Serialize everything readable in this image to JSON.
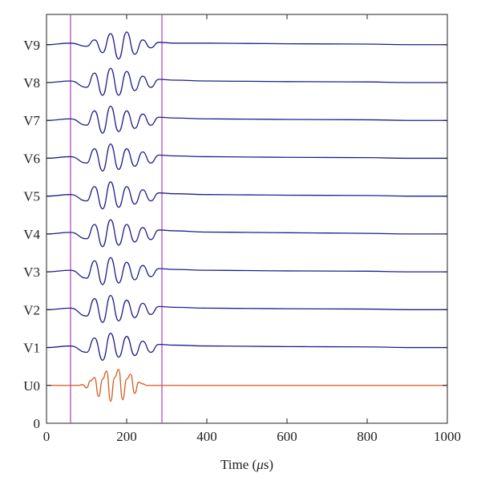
{
  "chart_data": {
    "type": "line",
    "title": "",
    "xlabel": {
      "prefix": "Time (",
      "unit_symbol": "μ",
      "unit_rest": "s)"
    },
    "ylabel": "",
    "xlim": [
      0,
      1000
    ],
    "ylim": [
      0,
      10.8
    ],
    "x_ticks": [
      0,
      200,
      400,
      600,
      800,
      1000
    ],
    "y_tick_labels": [
      "0",
      "U0",
      "V1",
      "V2",
      "V3",
      "V4",
      "V5",
      "V6",
      "V7",
      "V8",
      "V9"
    ],
    "grid": false,
    "legend": "none",
    "window_markers_x": [
      60,
      288
    ],
    "colors": {
      "excitation": "#d45a1e",
      "response": "#1f1f8c",
      "window_marker": "#b44fc0",
      "axis": "#222222"
    },
    "series": [
      {
        "name": "U0",
        "offset": 1,
        "color": "excitation",
        "x": [
          0,
          80,
          90,
          100,
          110,
          120,
          130,
          140,
          150,
          160,
          170,
          180,
          190,
          200,
          210,
          220,
          230,
          240,
          250,
          1000
        ],
        "values": [
          0,
          0,
          0.05,
          -0.15,
          0.3,
          0.5,
          -0.7,
          0.4,
          0.9,
          -1.0,
          0.5,
          1.0,
          -0.9,
          0.4,
          0.7,
          -0.5,
          0.2,
          0.1,
          0,
          0
        ]
      },
      {
        "name": "V1",
        "offset": 2,
        "color": "response",
        "x": [
          0,
          60,
          100,
          120,
          140,
          160,
          180,
          200,
          220,
          240,
          260,
          280,
          320,
          400,
          500,
          600,
          700,
          800,
          900,
          1000
        ],
        "values": [
          0,
          0.1,
          -0.3,
          0.6,
          -0.8,
          0.9,
          -0.6,
          0.7,
          -0.5,
          0.4,
          -0.3,
          0.2,
          0.15,
          0.1,
          0.08,
          0.06,
          0.05,
          0.04,
          0,
          0
        ]
      },
      {
        "name": "V2",
        "offset": 3,
        "color": "response",
        "x": [
          0,
          60,
          100,
          120,
          140,
          160,
          180,
          200,
          220,
          240,
          260,
          280,
          320,
          400,
          500,
          600,
          700,
          800,
          900,
          1000
        ],
        "values": [
          0,
          0.1,
          -0.4,
          0.7,
          -0.8,
          0.9,
          -0.7,
          0.6,
          -0.5,
          0.4,
          -0.3,
          0.2,
          0.15,
          0.1,
          0.08,
          0.06,
          0.05,
          0.04,
          0,
          0
        ]
      },
      {
        "name": "V3",
        "offset": 4,
        "color": "response",
        "x": [
          0,
          60,
          100,
          120,
          140,
          160,
          180,
          200,
          220,
          240,
          260,
          280,
          320,
          400,
          500,
          600,
          700,
          800,
          900,
          1000
        ],
        "values": [
          0,
          0.1,
          -0.4,
          0.7,
          -0.8,
          0.9,
          -0.7,
          0.6,
          -0.5,
          0.4,
          -0.3,
          0.2,
          0.15,
          0.1,
          0.08,
          0.06,
          0.05,
          0.04,
          0,
          0
        ]
      },
      {
        "name": "V4",
        "offset": 5,
        "color": "response",
        "x": [
          0,
          60,
          100,
          120,
          140,
          160,
          180,
          200,
          220,
          240,
          260,
          280,
          320,
          400,
          500,
          600,
          700,
          800,
          900,
          1000
        ],
        "values": [
          0,
          0.1,
          -0.3,
          0.6,
          -0.8,
          0.9,
          -0.7,
          0.6,
          -0.5,
          0.4,
          -0.35,
          0.25,
          0.2,
          0.12,
          0.1,
          0.08,
          0.06,
          0.04,
          0,
          0
        ]
      },
      {
        "name": "V5",
        "offset": 6,
        "color": "response",
        "x": [
          0,
          60,
          100,
          120,
          140,
          160,
          180,
          200,
          220,
          240,
          260,
          280,
          320,
          400,
          500,
          600,
          700,
          800,
          900,
          1000
        ],
        "values": [
          0,
          0.1,
          -0.3,
          0.6,
          -0.8,
          0.9,
          -0.7,
          0.6,
          -0.5,
          0.4,
          -0.3,
          0.2,
          0.15,
          0.1,
          0.08,
          0.06,
          0.05,
          0.04,
          0,
          0
        ]
      },
      {
        "name": "V6",
        "offset": 7,
        "color": "response",
        "x": [
          0,
          60,
          100,
          120,
          140,
          160,
          180,
          200,
          220,
          240,
          260,
          280,
          320,
          400,
          500,
          600,
          700,
          800,
          900,
          1000
        ],
        "values": [
          0,
          0.1,
          -0.3,
          0.6,
          -0.8,
          0.9,
          -0.7,
          0.6,
          -0.5,
          0.4,
          -0.3,
          0.2,
          0.15,
          0.1,
          0.08,
          0.06,
          0.05,
          0.04,
          0,
          0
        ]
      },
      {
        "name": "V7",
        "offset": 8,
        "color": "response",
        "x": [
          0,
          60,
          100,
          120,
          140,
          160,
          180,
          200,
          220,
          240,
          260,
          280,
          320,
          400,
          500,
          600,
          700,
          800,
          900,
          1000
        ],
        "values": [
          0,
          0.1,
          -0.3,
          0.6,
          -0.8,
          0.9,
          -0.7,
          0.6,
          -0.5,
          0.4,
          -0.3,
          0.2,
          0.15,
          0.1,
          0.08,
          0.06,
          0.05,
          0.04,
          0,
          0
        ]
      },
      {
        "name": "V8",
        "offset": 9,
        "color": "response",
        "x": [
          0,
          60,
          100,
          120,
          140,
          160,
          180,
          200,
          220,
          240,
          260,
          280,
          320,
          400,
          500,
          600,
          700,
          800,
          900,
          1000
        ],
        "values": [
          0,
          0.1,
          -0.3,
          0.6,
          -0.8,
          0.9,
          -0.8,
          0.7,
          -0.5,
          0.4,
          -0.3,
          0.2,
          0.15,
          0.1,
          0.08,
          0.06,
          0.05,
          0.04,
          0,
          0
        ]
      },
      {
        "name": "V9",
        "offset": 10,
        "color": "response",
        "x": [
          0,
          60,
          100,
          120,
          140,
          160,
          180,
          200,
          220,
          240,
          260,
          280,
          320,
          400,
          500,
          600,
          700,
          800,
          900,
          1000
        ],
        "values": [
          0,
          0.1,
          -0.1,
          0.3,
          -0.5,
          0.7,
          -0.9,
          0.8,
          -0.6,
          0.3,
          -0.2,
          0.15,
          0.1,
          0.1,
          0.08,
          0.06,
          0.05,
          0.04,
          0,
          0
        ]
      }
    ]
  }
}
